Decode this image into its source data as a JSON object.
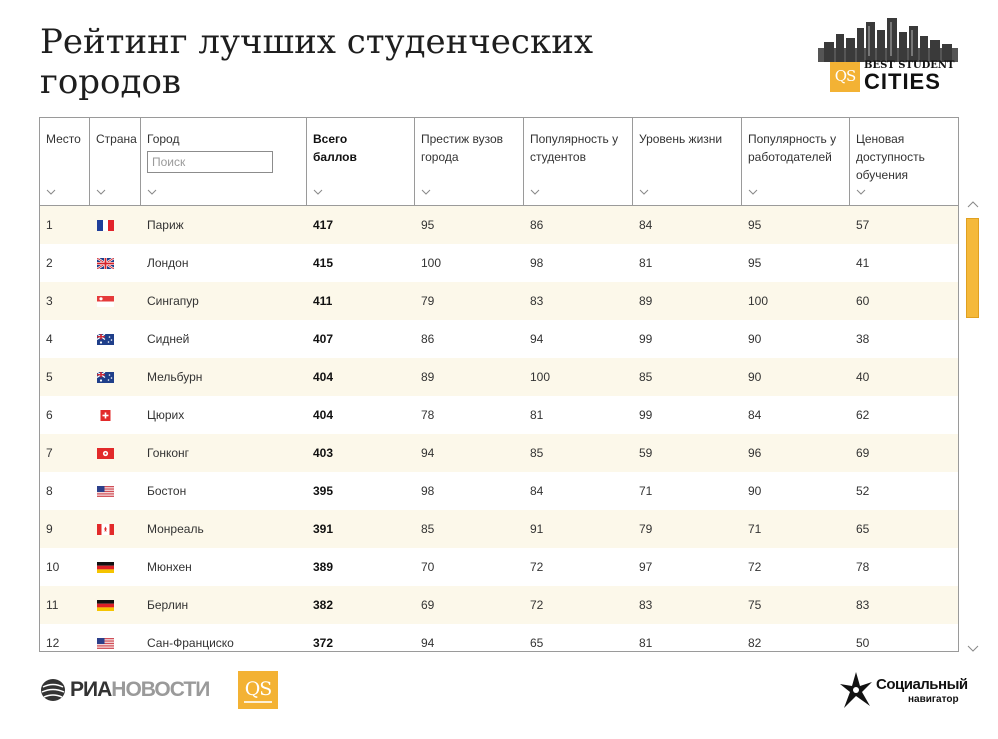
{
  "page": {
    "title": "Рейтинг лучших студенческих городов"
  },
  "brand": {
    "qs_badge": "QS",
    "bsc_top": "BEST STUDENT",
    "bsc_cities": "CITIES",
    "accent_color": "#f3b234"
  },
  "table": {
    "columns": [
      {
        "key": "place",
        "label": "Место"
      },
      {
        "key": "country",
        "label": "Страна"
      },
      {
        "key": "city",
        "label": "Город"
      },
      {
        "key": "total",
        "label": "Всего баллов"
      },
      {
        "key": "prestige",
        "label": "Престиж вузов города"
      },
      {
        "key": "popularity",
        "label": "Популярность у студентов"
      },
      {
        "key": "living",
        "label": "Уровень жизни"
      },
      {
        "key": "employers",
        "label": "Популярность у работодателей"
      },
      {
        "key": "affordability",
        "label": "Ценовая доступность обучения"
      }
    ],
    "search_placeholder": "Поиск",
    "sort_icon": "chevron-down-icon",
    "rows": [
      {
        "place": "1",
        "country": "France",
        "city": "Париж",
        "total": "417",
        "prestige": "95",
        "popularity": "86",
        "living": "84",
        "employers": "95",
        "affordability": "57"
      },
      {
        "place": "2",
        "country": "United Kingdom",
        "city": "Лондон",
        "total": "415",
        "prestige": "100",
        "popularity": "98",
        "living": "81",
        "employers": "95",
        "affordability": "41"
      },
      {
        "place": "3",
        "country": "Singapore",
        "city": "Сингапур",
        "total": "411",
        "prestige": "79",
        "popularity": "83",
        "living": "89",
        "employers": "100",
        "affordability": "60"
      },
      {
        "place": "4",
        "country": "Australia",
        "city": "Сидней",
        "total": "407",
        "prestige": "86",
        "popularity": "94",
        "living": "99",
        "employers": "90",
        "affordability": "38"
      },
      {
        "place": "5",
        "country": "Australia",
        "city": "Мельбурн",
        "total": "404",
        "prestige": "89",
        "popularity": "100",
        "living": "85",
        "employers": "90",
        "affordability": "40"
      },
      {
        "place": "6",
        "country": "Switzerland",
        "city": "Цюрих",
        "total": "404",
        "prestige": "78",
        "popularity": "81",
        "living": "99",
        "employers": "84",
        "affordability": "62"
      },
      {
        "place": "7",
        "country": "Hong Kong",
        "city": "Гонконг",
        "total": "403",
        "prestige": "94",
        "popularity": "85",
        "living": "59",
        "employers": "96",
        "affordability": "69"
      },
      {
        "place": "8",
        "country": "United States",
        "city": "Бостон",
        "total": "395",
        "prestige": "98",
        "popularity": "84",
        "living": "71",
        "employers": "90",
        "affordability": "52"
      },
      {
        "place": "9",
        "country": "Canada",
        "city": "Монреаль",
        "total": "391",
        "prestige": "85",
        "popularity": "91",
        "living": "79",
        "employers": "71",
        "affordability": "65"
      },
      {
        "place": "10",
        "country": "Germany",
        "city": "Мюнхен",
        "total": "389",
        "prestige": "70",
        "popularity": "72",
        "living": "97",
        "employers": "72",
        "affordability": "78"
      },
      {
        "place": "11",
        "country": "Germany",
        "city": "Берлин",
        "total": "382",
        "prestige": "69",
        "popularity": "72",
        "living": "83",
        "employers": "75",
        "affordability": "83"
      },
      {
        "place": "12",
        "country": "United States",
        "city": "Сан-Франциско",
        "total": "372",
        "prestige": "94",
        "popularity": "65",
        "living": "81",
        "employers": "82",
        "affordability": "50"
      }
    ]
  },
  "footer": {
    "ria_bold": "РИА",
    "ria_light": "НОВОСТИ",
    "qs_badge": "QS",
    "sn_line1": "Социальный",
    "sn_line2": "навигатор"
  }
}
